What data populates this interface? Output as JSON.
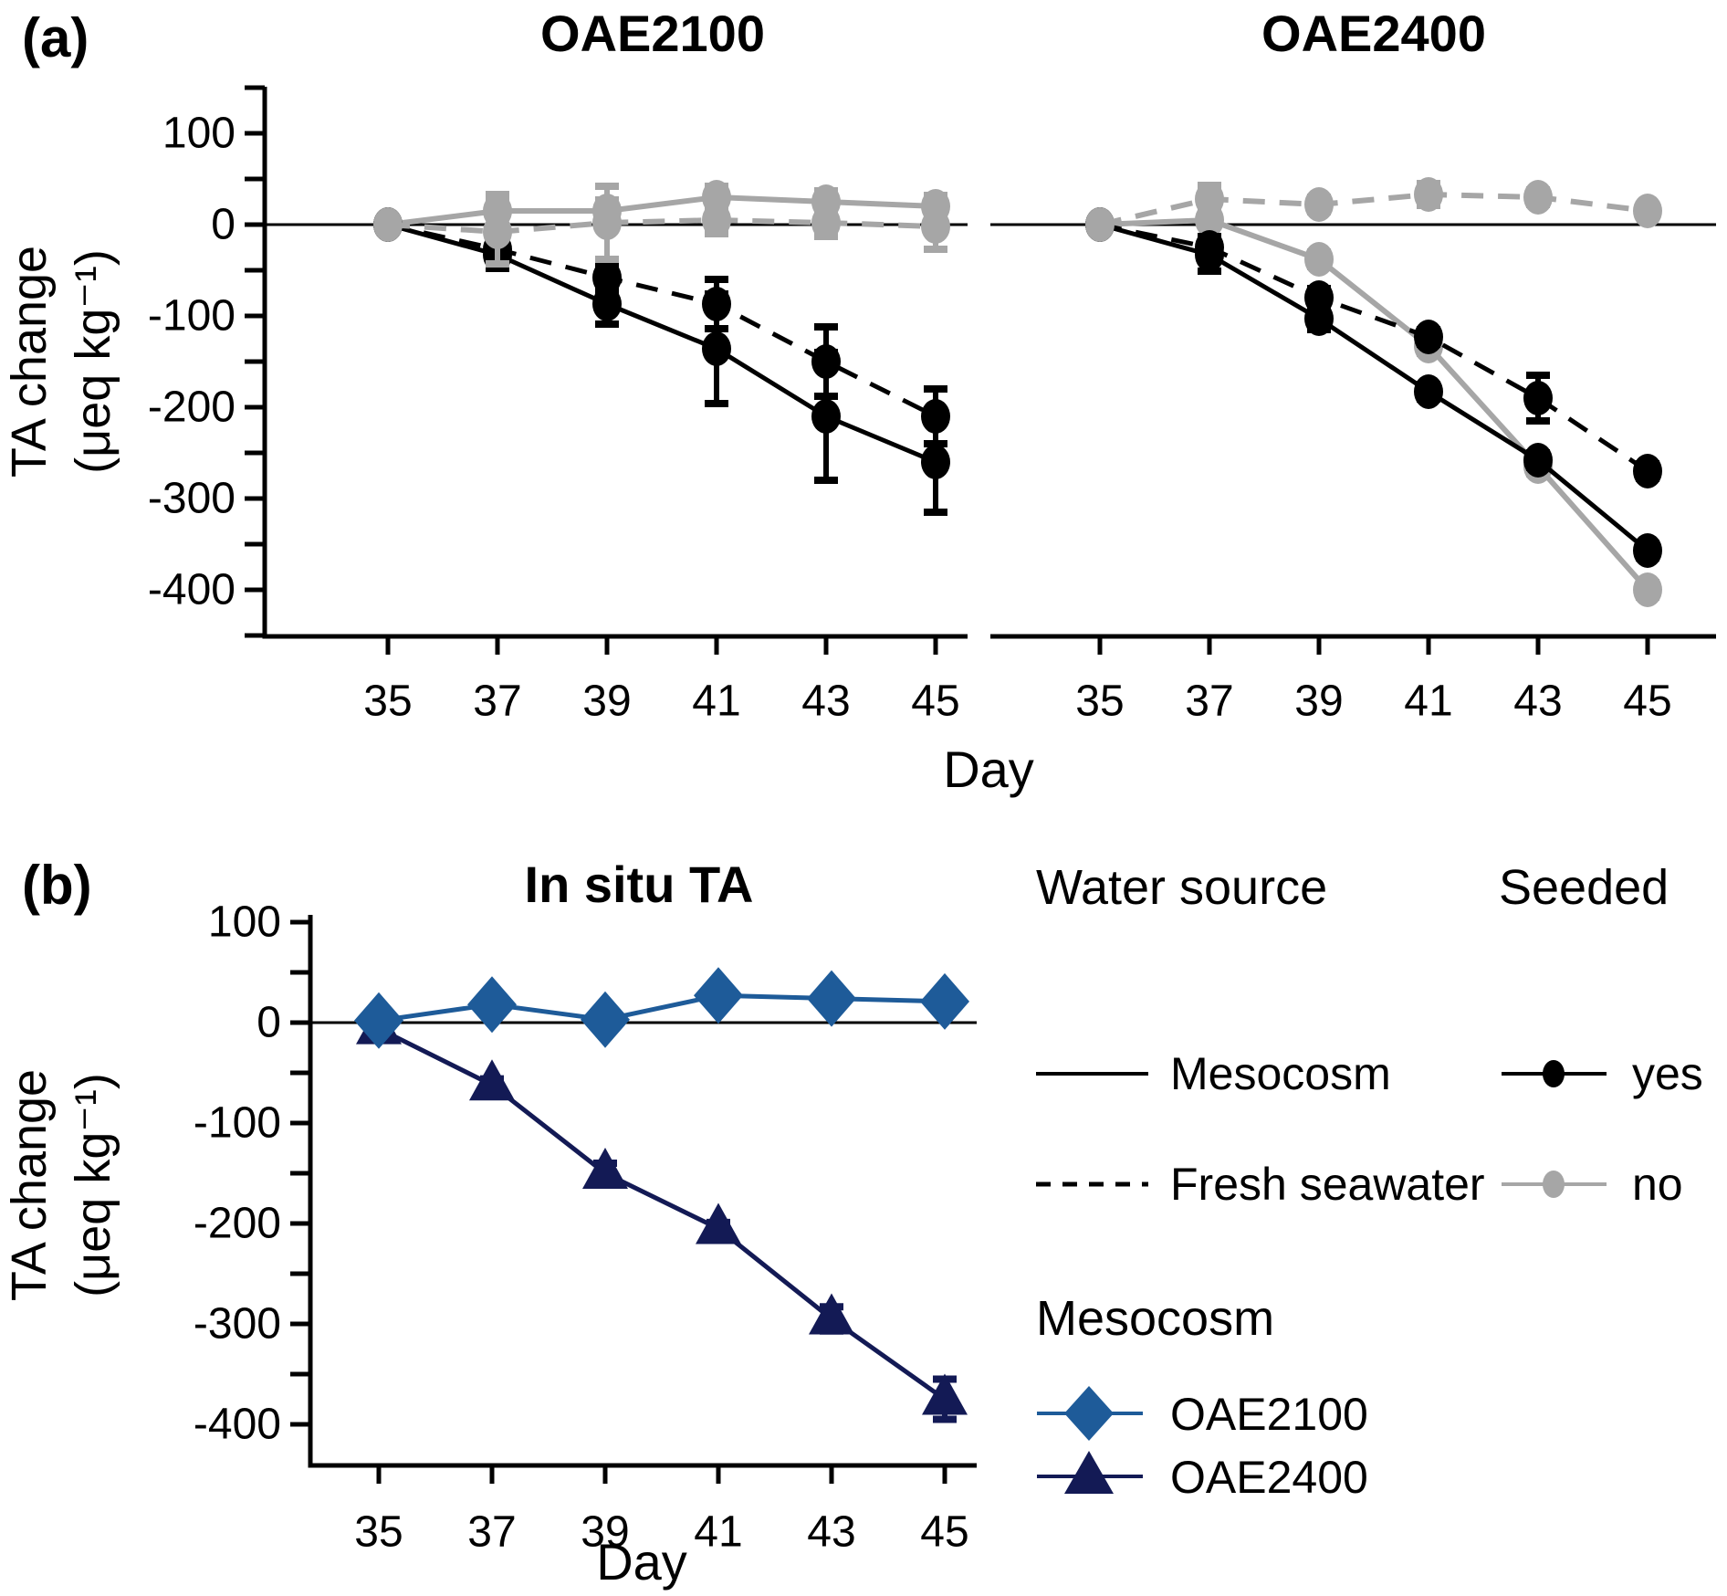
{
  "colors": {
    "black": "#000000",
    "gray": "#a6a6a6",
    "blue": "#1e5b99",
    "navy": "#131a55"
  },
  "panel_a": {
    "label": "(a)",
    "left_title": "OAE2100",
    "right_title": "OAE2400"
  },
  "panel_b": {
    "label": "(b)",
    "title": "In situ TA"
  },
  "axis": {
    "xlabel": "Day",
    "ylabel_line1": "TA change",
    "ylabel_line2": "(μeq kg⁻¹)",
    "x_ticks": [
      "35",
      "37",
      "39",
      "41",
      "43",
      "45"
    ],
    "y_ticks": [
      "100",
      "0",
      "-100",
      "-200",
      "-300",
      "-400"
    ]
  },
  "legend": {
    "water_source": {
      "title": "Water source",
      "items": [
        {
          "label": "Mesocosm",
          "line": "solid"
        },
        {
          "label": "Fresh seawater",
          "line": "dashed"
        }
      ]
    },
    "seeded": {
      "title": "Seeded",
      "items": [
        {
          "label": "yes",
          "color": "black"
        },
        {
          "label": "no",
          "color": "gray"
        }
      ]
    },
    "mesocosm": {
      "title": "Mesocosm",
      "items": [
        {
          "label": "OAE2100",
          "marker": "diamond",
          "color": "blue"
        },
        {
          "label": "OAE2400",
          "marker": "triangle",
          "color": "navy"
        }
      ]
    }
  },
  "chart_data": [
    {
      "id": "oae2100",
      "type": "line",
      "title": "OAE2100",
      "xlabel": "Day",
      "ylabel": "TA change (μeq kg⁻¹)",
      "x": [
        35,
        37,
        39,
        41,
        43,
        45
      ],
      "xlim": [
        34,
        46
      ],
      "ylim": [
        -450,
        150
      ],
      "grid": false,
      "series": [
        {
          "name": "unseeded-mesocosm",
          "water_source": "Mesocosm",
          "seeded": "no",
          "color": "gray",
          "line": "solid",
          "marker": "circle",
          "values": [
            0,
            15,
            15,
            30,
            25,
            20
          ],
          "errors": [
            0,
            18,
            12,
            12,
            12,
            12
          ]
        },
        {
          "name": "seeded-fresh-seawater",
          "water_source": "Fresh seawater",
          "seeded": "yes",
          "color": "black",
          "line": "dashed",
          "marker": "circle",
          "values": [
            0,
            -27,
            -58,
            -87,
            -150,
            -210
          ],
          "errors": [
            0,
            20,
            15,
            27,
            38,
            30
          ]
        },
        {
          "name": "seeded-mesocosm",
          "water_source": "Mesocosm",
          "seeded": "yes",
          "color": "black",
          "line": "solid",
          "marker": "circle",
          "values": [
            0,
            -33,
            -87,
            -136,
            -210,
            -260
          ],
          "errors": [
            0,
            15,
            22,
            60,
            70,
            55
          ]
        },
        {
          "name": "unseeded-fresh-seawater",
          "water_source": "Fresh seawater",
          "seeded": "no",
          "color": "gray",
          "line": "dashed",
          "marker": "circle",
          "values": [
            0,
            -8,
            2,
            5,
            2,
            -2
          ],
          "errors": [
            0,
            35,
            40,
            15,
            15,
            25
          ]
        }
      ]
    },
    {
      "id": "oae2400",
      "type": "line",
      "title": "OAE2400",
      "xlabel": "Day",
      "ylabel": "TA change (μeq kg⁻¹)",
      "x": [
        35,
        37,
        39,
        41,
        43,
        45
      ],
      "xlim": [
        34,
        46
      ],
      "ylim": [
        -450,
        150
      ],
      "grid": false,
      "series": [
        {
          "name": "unseeded-mesocosm",
          "water_source": "Mesocosm",
          "seeded": "no",
          "color": "gray",
          "line": "solid",
          "marker": "circle",
          "values": [
            0,
            5,
            -38,
            -133,
            -265,
            -400
          ],
          "errors": [
            0,
            6,
            8,
            8,
            8,
            8
          ]
        },
        {
          "name": "seeded-fresh-seawater",
          "water_source": "Fresh seawater",
          "seeded": "yes",
          "color": "black",
          "line": "dashed",
          "marker": "circle",
          "values": [
            0,
            -25,
            -80,
            -123,
            -190,
            -270
          ],
          "errors": [
            0,
            12,
            10,
            8,
            25,
            8
          ]
        },
        {
          "name": "seeded-mesocosm",
          "water_source": "Mesocosm",
          "seeded": "yes",
          "color": "black",
          "line": "solid",
          "marker": "circle",
          "values": [
            0,
            -33,
            -103,
            -183,
            -258,
            -357
          ],
          "errors": [
            0,
            18,
            12,
            8,
            8,
            8
          ]
        },
        {
          "name": "unseeded-fresh-seawater",
          "water_source": "Fresh seawater",
          "seeded": "no",
          "color": "gray",
          "line": "dashed",
          "marker": "circle",
          "values": [
            0,
            28,
            22,
            33,
            30,
            15
          ],
          "errors": [
            0,
            15,
            8,
            12,
            8,
            6
          ]
        }
      ]
    },
    {
      "id": "insitu",
      "type": "line",
      "title": "In situ TA",
      "xlabel": "Day",
      "ylabel": "TA change (μeq kg⁻¹)",
      "x": [
        35,
        37,
        39,
        41,
        43,
        45
      ],
      "xlim": [
        34,
        46
      ],
      "ylim": [
        -450,
        150
      ],
      "grid": false,
      "series": [
        {
          "name": "OAE2400",
          "mesocosm": "OAE2400",
          "color": "navy",
          "line": "solid",
          "marker": "triangle",
          "values": [
            -6,
            -62,
            -150,
            -205,
            -295,
            -375
          ],
          "errors": [
            6,
            6,
            10,
            6,
            12,
            20
          ]
        },
        {
          "name": "OAE2100",
          "mesocosm": "OAE2100",
          "color": "blue",
          "line": "solid",
          "marker": "diamond",
          "values": [
            2,
            18,
            3,
            27,
            24,
            21
          ],
          "errors": [
            6,
            0,
            6,
            0,
            0,
            0
          ]
        }
      ]
    }
  ]
}
